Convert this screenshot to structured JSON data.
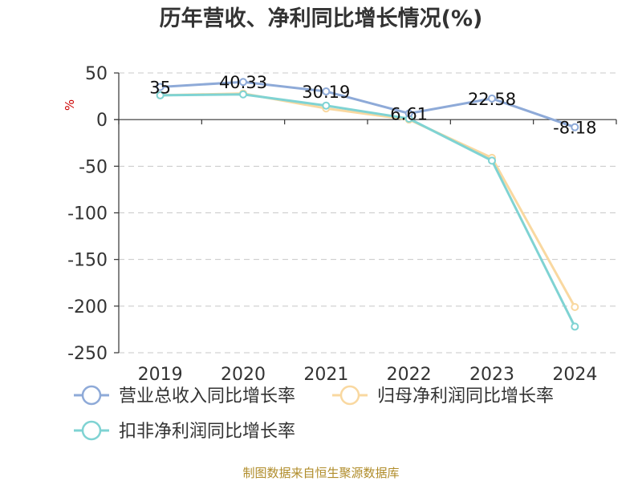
{
  "colors": {
    "revenue": "#8eaad8",
    "net_profit": "#f9d8a0",
    "deducted_profit": "#7fd3d3",
    "unit": "#cc0000",
    "source": "#b08c2a",
    "grid": "#c8c8c8",
    "axis": "#333333"
  },
  "chart_data": {
    "type": "line",
    "title": "历年营收、净利同比增长情况(%)",
    "ylabel": "%",
    "x": [
      "2019",
      "2020",
      "2021",
      "2022",
      "2023",
      "2024"
    ],
    "ylim": [
      -250,
      50
    ],
    "yticks": [
      50,
      0,
      -50,
      -100,
      -150,
      -200,
      -250
    ],
    "grid": "horizontal-dashed",
    "legend_position": "bottom-left",
    "series": [
      {
        "name": "营业总收入同比增长率",
        "color_key": "revenue",
        "values": [
          35,
          40.33,
          30.19,
          6.61,
          22.58,
          -8.18
        ],
        "labels": [
          "35",
          "40.33",
          "30.19",
          "6.61",
          "22.58",
          "-8.18"
        ]
      },
      {
        "name": "归母净利润同比增长率",
        "color_key": "net_profit",
        "values": [
          26,
          28,
          12,
          0,
          -41,
          -201
        ]
      },
      {
        "name": "扣非净利润同比增长率",
        "color_key": "deducted_profit",
        "values": [
          26,
          27,
          15,
          1,
          -44,
          -222
        ]
      }
    ]
  },
  "source": "制图数据来自恒生聚源数据库"
}
